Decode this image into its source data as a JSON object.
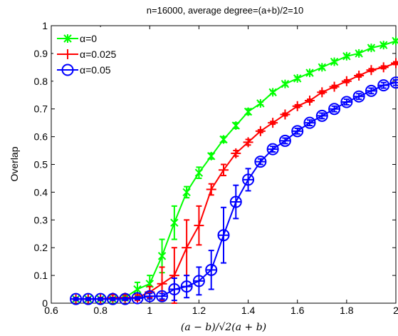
{
  "chart_data": {
    "type": "line",
    "title": "n=16000, average degree=(a+b)/2=10",
    "xlabel": "(a − b)/√2(a + b)",
    "ylabel": "Overlap",
    "xlim": [
      0.6,
      2.0
    ],
    "ylim": [
      0,
      1.0
    ],
    "xticks": [
      0.6,
      0.8,
      1,
      1.2,
      1.4,
      1.6,
      1.8,
      2
    ],
    "xtick_labels": [
      "0.6",
      "0.8",
      "1",
      "1.2",
      "1.4",
      "1.6",
      "1.8",
      "2"
    ],
    "yticks": [
      0,
      0.1,
      0.2,
      0.3,
      0.4,
      0.5,
      0.6,
      0.7,
      0.8,
      0.9,
      1
    ],
    "ytick_labels": [
      "0",
      "0.1",
      "0.2",
      "0.3",
      "0.4",
      "0.5",
      "0.6",
      "0.7",
      "0.8",
      "0.9",
      "1"
    ],
    "grid": false,
    "legend_position": "top-left",
    "x": [
      0.7,
      0.75,
      0.8,
      0.85,
      0.9,
      0.95,
      1.0,
      1.05,
      1.1,
      1.15,
      1.2,
      1.25,
      1.3,
      1.35,
      1.4,
      1.45,
      1.5,
      1.55,
      1.6,
      1.65,
      1.7,
      1.75,
      1.8,
      1.85,
      1.9,
      1.95,
      2.0
    ],
    "series": [
      {
        "name": "α=0",
        "color": "#00ff00",
        "marker": "x-star",
        "values": [
          0.015,
          0.015,
          0.015,
          0.015,
          0.02,
          0.05,
          0.07,
          0.17,
          0.29,
          0.4,
          0.47,
          0.53,
          0.59,
          0.64,
          0.69,
          0.72,
          0.76,
          0.79,
          0.81,
          0.83,
          0.85,
          0.87,
          0.89,
          0.9,
          0.92,
          0.93,
          0.945
        ],
        "errors": [
          0.005,
          0.005,
          0.005,
          0.005,
          0.005,
          0.025,
          0.03,
          0.06,
          0.06,
          0.02,
          0.02,
          0.01,
          0.01,
          0.01,
          0.01,
          0.005,
          0.005,
          0.005,
          0.005,
          0.005,
          0.005,
          0.005,
          0.005,
          0.005,
          0.005,
          0.005,
          0.005
        ]
      },
      {
        "name": "α=0.025",
        "color": "#ff0000",
        "marker": "plus",
        "values": [
          0.015,
          0.015,
          0.015,
          0.02,
          0.02,
          0.02,
          0.04,
          0.07,
          0.1,
          0.2,
          0.28,
          0.41,
          0.48,
          0.54,
          0.58,
          0.62,
          0.65,
          0.68,
          0.71,
          0.73,
          0.76,
          0.78,
          0.8,
          0.82,
          0.84,
          0.85,
          0.865
        ],
        "errors": [
          0.005,
          0.005,
          0.005,
          0.01,
          0.01,
          0.01,
          0.02,
          0.06,
          0.1,
          0.1,
          0.07,
          0.02,
          0.02,
          0.01,
          0.01,
          0.005,
          0.005,
          0.005,
          0.005,
          0.005,
          0.005,
          0.005,
          0.005,
          0.005,
          0.005,
          0.005,
          0.005
        ]
      },
      {
        "name": "α=0.05",
        "color": "#0000ff",
        "marker": "circle-dash",
        "values": [
          0.015,
          0.015,
          0.015,
          0.015,
          0.015,
          0.018,
          0.025,
          0.025,
          0.05,
          0.06,
          0.08,
          0.12,
          0.245,
          0.365,
          0.445,
          0.51,
          0.555,
          0.585,
          0.62,
          0.65,
          0.675,
          0.7,
          0.725,
          0.745,
          0.765,
          0.785,
          0.795
        ],
        "errors": [
          0.005,
          0.005,
          0.005,
          0.005,
          0.005,
          0.005,
          0.01,
          0.01,
          0.04,
          0.04,
          0.05,
          0.07,
          0.1,
          0.06,
          0.04,
          0.01,
          0.01,
          0.01,
          0.01,
          0.01,
          0.01,
          0.01,
          0.01,
          0.01,
          0.01,
          0.01,
          0.01
        ]
      }
    ]
  }
}
